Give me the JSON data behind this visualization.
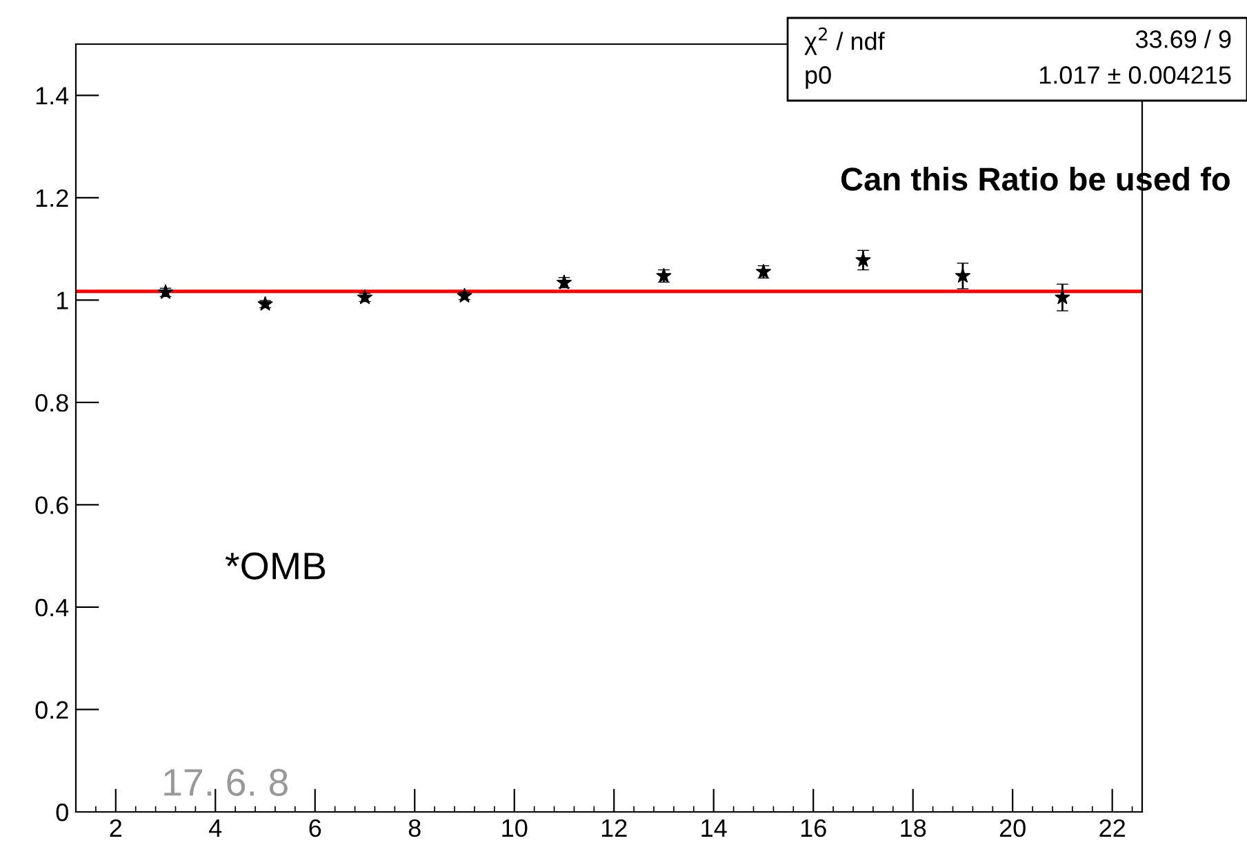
{
  "chart_data": {
    "type": "scatter",
    "x": [
      3,
      5,
      7,
      9,
      11,
      13,
      15,
      17,
      19,
      21
    ],
    "series": [
      {
        "color": "#000000",
        "values": [
          1.015,
          0.992,
          1.005,
          1.008,
          1.034,
          1.047,
          1.055,
          1.078,
          1.047,
          1.005
        ],
        "errors": [
          0.008,
          0.007,
          0.008,
          0.007,
          0.01,
          0.012,
          0.012,
          0.019,
          0.025,
          0.026
        ]
      }
    ],
    "marker": "star",
    "xlim": [
      1.2,
      22.6
    ],
    "ylim": [
      0,
      1.5
    ],
    "xticks": [
      2,
      4,
      6,
      8,
      10,
      12,
      14,
      16,
      18,
      20,
      22
    ],
    "yticks": [
      0,
      0.2,
      0.4,
      0.6,
      0.8,
      1,
      1.2,
      1.4
    ],
    "ref_lines": [
      {
        "axis": "y",
        "value": 1.017,
        "color": "#ff0000"
      }
    ],
    "grid": false,
    "annotations": [
      "χ$^{2}$ / ndf",
      "33.69 / 9",
      "p0",
      "1.017 ± 0.004215",
      "Can this Ratio be used fo",
      "*OMB",
      "17. 6. 8"
    ]
  }
}
